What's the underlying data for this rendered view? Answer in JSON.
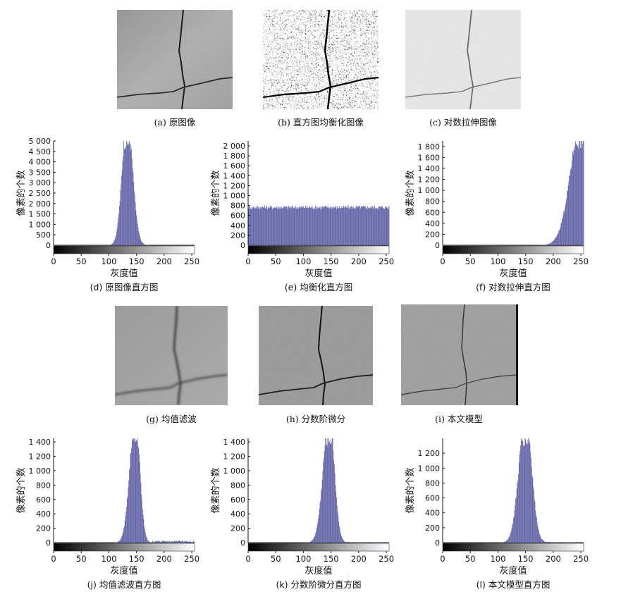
{
  "images": [
    {
      "id": "a",
      "caption": "(a) 原图像",
      "style": "gray"
    },
    {
      "id": "b",
      "caption": "(b) 直方图均衡化图像",
      "style": "equalized"
    },
    {
      "id": "c",
      "caption": "(c) 对数拉伸图像",
      "style": "log"
    },
    {
      "id": "g",
      "caption": "(g) 均值滤波",
      "style": "blur"
    },
    {
      "id": "h",
      "caption": "(h) 分数阶微分",
      "style": "sharp"
    },
    {
      "id": "i",
      "caption": "(i) 本文模型",
      "style": "model"
    }
  ],
  "chart_data": [
    {
      "id": "d",
      "type": "bar",
      "caption": "(d) 原图像直方图",
      "xlabel": "灰度值",
      "ylabel": "像素的个数",
      "xlim": [
        0,
        255
      ],
      "ylim": [
        0,
        5000
      ],
      "yticks": [
        0,
        500,
        1000,
        1500,
        2000,
        2500,
        3000,
        3500,
        4000,
        4500,
        5000
      ],
      "ytick_labels": [
        "0",
        "500",
        "1 000",
        "1 500",
        "2 000",
        "2 500",
        "3 000",
        "3 500",
        "4 000",
        "4 500",
        "5 000"
      ],
      "xticks": [
        0,
        50,
        100,
        150,
        200,
        250
      ],
      "distribution": {
        "peak_x": 133,
        "peak_y": 5000,
        "sigma_left": 9,
        "sigma_right": 10
      }
    },
    {
      "id": "e",
      "type": "bar",
      "caption": "(e) 均衡化直方图",
      "xlabel": "灰度值",
      "ylabel": "像素的个数",
      "xlim": [
        0,
        255
      ],
      "ylim": [
        0,
        2100
      ],
      "yticks": [
        0,
        200,
        400,
        600,
        800,
        1000,
        1200,
        1400,
        1600,
        1800,
        2000
      ],
      "ytick_labels": [
        "0",
        "200",
        "400",
        "600",
        "800",
        "1 000",
        "1 200",
        "1 400",
        "1 600",
        "1 800",
        "2 000"
      ],
      "xticks": [
        0,
        50,
        100,
        150,
        200,
        250
      ],
      "distribution": {
        "flat_value": 780,
        "x_start": 1,
        "x_end": 255
      }
    },
    {
      "id": "f",
      "type": "bar",
      "caption": "(f) 对数拉伸直方图",
      "xlabel": "灰度值",
      "ylabel": "像素的个数",
      "xlim": [
        0,
        255
      ],
      "ylim": [
        0,
        1900
      ],
      "yticks": [
        0,
        200,
        400,
        600,
        800,
        1000,
        1200,
        1400,
        1600,
        1800
      ],
      "ytick_labels": [
        "0",
        "200",
        "400",
        "600",
        "800",
        "1 000",
        "1 200",
        "1 400",
        "1 600",
        "1 800"
      ],
      "xticks": [
        0,
        50,
        100,
        150,
        200,
        250
      ],
      "distribution": {
        "peak_x": 252,
        "peak_y": 1900,
        "sigma_left": 20,
        "sigma_right": 5
      }
    },
    {
      "id": "j",
      "type": "bar",
      "caption": "(j) 均值滤波直方图",
      "xlabel": "灰度值",
      "ylabel": "像素的个数",
      "xlim": [
        0,
        255
      ],
      "ylim": [
        0,
        1450
      ],
      "yticks": [
        0,
        200,
        400,
        600,
        800,
        1000,
        1200,
        1400
      ],
      "ytick_labels": [
        "0",
        "200",
        "400",
        "600",
        "800",
        "1 000",
        "1 200",
        "1 400"
      ],
      "xticks": [
        0,
        50,
        100,
        150,
        200,
        250
      ],
      "distribution": {
        "peak_x": 148,
        "peak_y": 1450,
        "sigma_left": 10,
        "sigma_right": 8,
        "tail": 30
      }
    },
    {
      "id": "k",
      "type": "bar",
      "caption": "(k) 分数阶微分直方图",
      "xlabel": "灰度值",
      "ylabel": "像素的个数",
      "xlim": [
        0,
        255
      ],
      "ylim": [
        0,
        1450
      ],
      "yticks": [
        0,
        200,
        400,
        600,
        800,
        1000,
        1200,
        1400
      ],
      "ytick_labels": [
        "0",
        "200",
        "400",
        "600",
        "800",
        "1 000",
        "1 200",
        "1 400"
      ],
      "xticks": [
        0,
        50,
        100,
        150,
        200,
        250
      ],
      "distribution": {
        "peak_x": 147,
        "peak_y": 1450,
        "sigma_left": 11,
        "sigma_right": 9,
        "tail": 10
      }
    },
    {
      "id": "l",
      "type": "bar",
      "caption": "(l) 本文模型直方图",
      "xlabel": "灰度值",
      "ylabel": "像素的个数",
      "xlim": [
        0,
        255
      ],
      "ylim": [
        0,
        1400
      ],
      "yticks": [
        0,
        200,
        400,
        600,
        800,
        1000,
        1200
      ],
      "ytick_labels": [
        "0",
        "200",
        "400",
        "600",
        "800",
        "1 000",
        "1 200"
      ],
      "xticks": [
        0,
        50,
        100,
        150,
        200,
        250
      ],
      "distribution": {
        "peak_x": 150,
        "peak_y": 1400,
        "sigma_left": 12,
        "sigma_right": 11,
        "tail": 10
      }
    }
  ],
  "colors": {
    "bar": "#5f5fa6",
    "bar_edge": "#3d3d80",
    "axis": "#111111"
  }
}
